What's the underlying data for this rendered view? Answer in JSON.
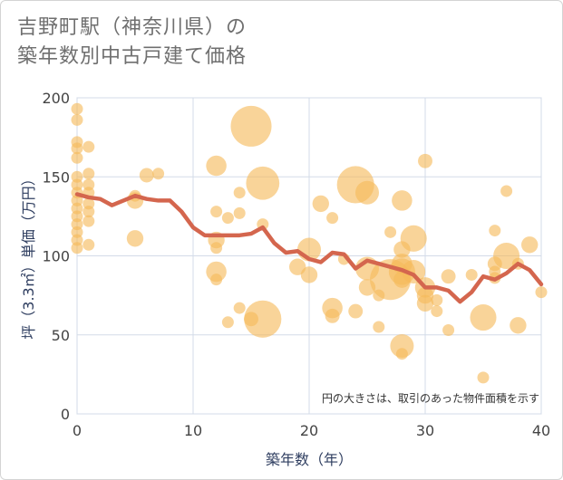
{
  "title_lines": [
    "吉野町駅（神奈川県）の",
    "築年数別中古戸建て価格"
  ],
  "chart_data": {
    "type": "scatter",
    "title": "吉野町駅（神奈川県）の築年数別中古戸建て価格",
    "xlabel": "築年数（年）",
    "ylabel": "坪（3.3㎡）単価（万円）",
    "xlim": [
      0,
      40
    ],
    "ylim": [
      0,
      200
    ],
    "xticks": [
      "0",
      "10",
      "20",
      "30",
      "40"
    ],
    "yticks": [
      "0",
      "50",
      "100",
      "150",
      "200"
    ],
    "note": "円の大きさは、取引のあった物件面積を示す",
    "bubble_color": "#f5b95a",
    "line_color": "#d4664e",
    "bubbles": [
      {
        "x": 0,
        "y": 193,
        "s": 1
      },
      {
        "x": 0,
        "y": 186,
        "s": 1
      },
      {
        "x": 0,
        "y": 172,
        "s": 1
      },
      {
        "x": 0,
        "y": 168,
        "s": 1
      },
      {
        "x": 0,
        "y": 162,
        "s": 1
      },
      {
        "x": 0,
        "y": 150,
        "s": 1
      },
      {
        "x": 0,
        "y": 145,
        "s": 1
      },
      {
        "x": 0,
        "y": 140,
        "s": 1
      },
      {
        "x": 0,
        "y": 135,
        "s": 1
      },
      {
        "x": 0,
        "y": 130,
        "s": 1
      },
      {
        "x": 0,
        "y": 125,
        "s": 1
      },
      {
        "x": 0,
        "y": 120,
        "s": 1
      },
      {
        "x": 0,
        "y": 115,
        "s": 1
      },
      {
        "x": 0,
        "y": 110,
        "s": 1
      },
      {
        "x": 0,
        "y": 105,
        "s": 1
      },
      {
        "x": 1,
        "y": 169,
        "s": 1
      },
      {
        "x": 1,
        "y": 152,
        "s": 1
      },
      {
        "x": 1,
        "y": 145,
        "s": 1
      },
      {
        "x": 1,
        "y": 140,
        "s": 1
      },
      {
        "x": 1,
        "y": 133,
        "s": 1
      },
      {
        "x": 1,
        "y": 128,
        "s": 1
      },
      {
        "x": 1,
        "y": 122,
        "s": 1
      },
      {
        "x": 1,
        "y": 107,
        "s": 1
      },
      {
        "x": 5,
        "y": 138,
        "s": 1
      },
      {
        "x": 5,
        "y": 135,
        "s": 2
      },
      {
        "x": 5,
        "y": 111,
        "s": 2
      },
      {
        "x": 6,
        "y": 151,
        "s": 1.5
      },
      {
        "x": 7,
        "y": 152,
        "s": 1
      },
      {
        "x": 12,
        "y": 157,
        "s": 3
      },
      {
        "x": 12,
        "y": 128,
        "s": 1
      },
      {
        "x": 12,
        "y": 110,
        "s": 2
      },
      {
        "x": 12,
        "y": 105,
        "s": 1
      },
      {
        "x": 12,
        "y": 90,
        "s": 3
      },
      {
        "x": 12,
        "y": 85,
        "s": 1
      },
      {
        "x": 13,
        "y": 124,
        "s": 1
      },
      {
        "x": 13,
        "y": 58,
        "s": 1
      },
      {
        "x": 14,
        "y": 140,
        "s": 1
      },
      {
        "x": 14,
        "y": 127,
        "s": 1
      },
      {
        "x": 14,
        "y": 67,
        "s": 1
      },
      {
        "x": 15,
        "y": 182,
        "s": 12
      },
      {
        "x": 15,
        "y": 60,
        "s": 1.5
      },
      {
        "x": 16,
        "y": 146,
        "s": 8
      },
      {
        "x": 16,
        "y": 120,
        "s": 1
      },
      {
        "x": 16,
        "y": 60,
        "s": 10
      },
      {
        "x": 19,
        "y": 93,
        "s": 2
      },
      {
        "x": 20,
        "y": 104,
        "s": 4
      },
      {
        "x": 20,
        "y": 88,
        "s": 2
      },
      {
        "x": 21,
        "y": 133,
        "s": 2
      },
      {
        "x": 22,
        "y": 124,
        "s": 1
      },
      {
        "x": 22,
        "y": 67,
        "s": 3
      },
      {
        "x": 22,
        "y": 62,
        "s": 1.5
      },
      {
        "x": 23,
        "y": 98,
        "s": 1
      },
      {
        "x": 24,
        "y": 145,
        "s": 10
      },
      {
        "x": 24,
        "y": 65,
        "s": 1.5
      },
      {
        "x": 25,
        "y": 140,
        "s": 4
      },
      {
        "x": 25,
        "y": 92,
        "s": 4
      },
      {
        "x": 25,
        "y": 80,
        "s": 2
      },
      {
        "x": 26,
        "y": 75,
        "s": 1
      },
      {
        "x": 26,
        "y": 55,
        "s": 1
      },
      {
        "x": 27,
        "y": 115,
        "s": 1
      },
      {
        "x": 27,
        "y": 85,
        "s": 12
      },
      {
        "x": 28,
        "y": 135,
        "s": 3
      },
      {
        "x": 28,
        "y": 104,
        "s": 2
      },
      {
        "x": 28,
        "y": 95,
        "s": 3
      },
      {
        "x": 28,
        "y": 90,
        "s": 5
      },
      {
        "x": 28,
        "y": 85,
        "s": 2
      },
      {
        "x": 28,
        "y": 43,
        "s": 4
      },
      {
        "x": 28,
        "y": 38,
        "s": 1
      },
      {
        "x": 29,
        "y": 111,
        "s": 5
      },
      {
        "x": 29,
        "y": 90,
        "s": 4
      },
      {
        "x": 30,
        "y": 160,
        "s": 1.5
      },
      {
        "x": 30,
        "y": 80,
        "s": 3
      },
      {
        "x": 30,
        "y": 75,
        "s": 2
      },
      {
        "x": 30,
        "y": 70,
        "s": 2
      },
      {
        "x": 31,
        "y": 72,
        "s": 1
      },
      {
        "x": 31,
        "y": 65,
        "s": 1
      },
      {
        "x": 32,
        "y": 87,
        "s": 1.5
      },
      {
        "x": 32,
        "y": 53,
        "s": 1
      },
      {
        "x": 34,
        "y": 88,
        "s": 1
      },
      {
        "x": 35,
        "y": 61,
        "s": 5
      },
      {
        "x": 35,
        "y": 23,
        "s": 1
      },
      {
        "x": 36,
        "y": 116,
        "s": 1
      },
      {
        "x": 36,
        "y": 95,
        "s": 1.5
      },
      {
        "x": 36,
        "y": 90,
        "s": 1
      },
      {
        "x": 36,
        "y": 86,
        "s": 1
      },
      {
        "x": 37,
        "y": 141,
        "s": 1
      },
      {
        "x": 37,
        "y": 100,
        "s": 5
      },
      {
        "x": 38,
        "y": 95,
        "s": 1
      },
      {
        "x": 38,
        "y": 56,
        "s": 2
      },
      {
        "x": 39,
        "y": 107,
        "s": 2
      },
      {
        "x": 40,
        "y": 77,
        "s": 1
      }
    ],
    "trend_x": [
      0,
      1,
      2,
      3,
      4,
      5,
      6,
      7,
      8,
      9,
      10,
      11,
      12,
      13,
      14,
      15,
      16,
      17,
      18,
      19,
      20,
      21,
      22,
      23,
      24,
      25,
      26,
      27,
      28,
      29,
      30,
      31,
      32,
      33,
      34,
      35,
      36,
      37,
      38,
      39,
      40
    ],
    "trend_y": [
      139,
      137,
      136,
      132,
      135,
      138,
      136,
      135,
      135,
      128,
      118,
      113,
      113,
      113,
      113,
      114,
      118,
      108,
      102,
      103,
      98,
      96,
      102,
      101,
      92,
      97,
      95,
      93,
      91,
      88,
      80,
      80,
      78,
      71,
      77,
      87,
      85,
      89,
      95,
      91,
      82
    ]
  }
}
